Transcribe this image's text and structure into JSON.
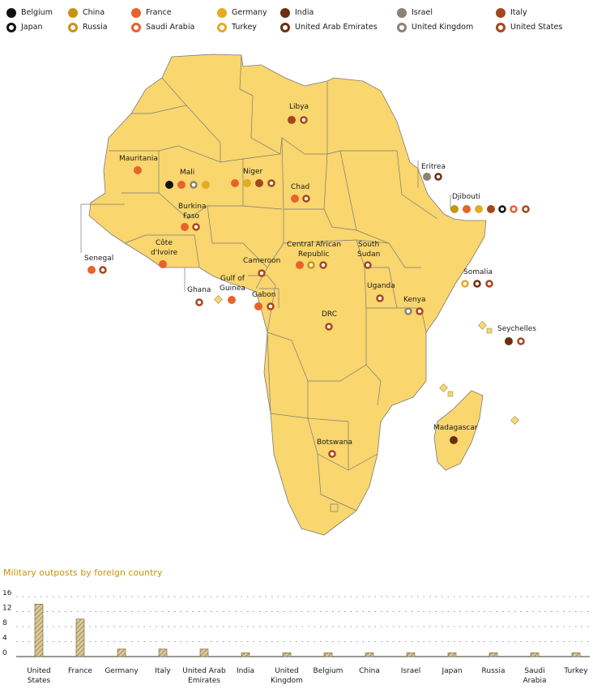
{
  "legend": [
    {
      "name": "Belgium",
      "style": "solid",
      "color": "#111111"
    },
    {
      "name": "China",
      "style": "solid",
      "color": "#c8930e"
    },
    {
      "name": "France",
      "style": "solid",
      "color": "#e8622a"
    },
    {
      "name": "Germany",
      "style": "solid",
      "color": "#e4ac23"
    },
    {
      "name": "India",
      "style": "solid",
      "color": "#6b2e10"
    },
    {
      "name": "Israel",
      "style": "solid",
      "color": "#8c8270"
    },
    {
      "name": "Italy",
      "style": "solid",
      "color": "#a5461d"
    },
    {
      "name": "Japan",
      "style": "ring",
      "color": "#111111"
    },
    {
      "name": "Russia",
      "style": "ring",
      "color": "#c8930e"
    },
    {
      "name": "Saudi Arabia",
      "style": "ring",
      "color": "#e8622a"
    },
    {
      "name": "Turkey",
      "style": "ring",
      "color": "#e4ac23"
    },
    {
      "name": "United Arab Emirates",
      "style": "ring",
      "color": "#6b2e10"
    },
    {
      "name": "United Kingdom",
      "style": "ring",
      "color": "#8c8270"
    },
    {
      "name": "United States",
      "style": "ring",
      "color": "#a5461d"
    }
  ],
  "map": {
    "labels": {
      "libya": "Libya",
      "mauritania": "Mauritania",
      "mali": "Mali",
      "niger": "Niger",
      "chad": "Chad",
      "eritrea": "Eritrea",
      "djibouti": "Djibouti",
      "burkina_1": "Burkina",
      "burkina_2": "Faso",
      "senegal": "Senegal",
      "cote_1": "Côte",
      "cote_2": "d'Ivoire",
      "car_1": "Central African",
      "car_2": "Republic",
      "ssudan_1": "South",
      "ssudan_2": "Sudan",
      "cameroon": "Cameroon",
      "somalia": "Somalia",
      "gog_1": "Gulf of",
      "gog_2": "Guinea",
      "ghana": "Ghana",
      "gabon": "Gabon",
      "uganda": "Uganda",
      "kenya": "Kenya",
      "drc": "DRC",
      "seychelles": "Seychelles",
      "madagascar": "Madagascar",
      "botswana": "Botswana"
    },
    "land_color": "#f9d66e",
    "border_color": "#7a7a7a"
  },
  "chart_title": "Military outposts by foreign country",
  "chart_data": {
    "type": "bar",
    "title": "Military outposts by foreign country",
    "categories": [
      "United States",
      "France",
      "Germany",
      "Italy",
      "United Arab Emirates",
      "India",
      "United Kingdom",
      "Belgium",
      "China",
      "Israel",
      "Japan",
      "Russia",
      "Saudi Arabia",
      "Turkey"
    ],
    "category_lines": [
      [
        "United",
        "States"
      ],
      [
        "France"
      ],
      [
        "Germany"
      ],
      [
        "Italy"
      ],
      [
        "United Arab",
        "Emirates"
      ],
      [
        "India"
      ],
      [
        "United",
        "Kingdom"
      ],
      [
        "Belgium"
      ],
      [
        "China"
      ],
      [
        "Israel"
      ],
      [
        "Japan"
      ],
      [
        "Russia"
      ],
      [
        "Saudi",
        "Arabia"
      ],
      [
        "Turkey"
      ]
    ],
    "values": [
      14,
      10,
      2,
      2,
      2,
      1,
      1,
      1,
      1,
      1,
      1,
      1,
      1,
      1
    ],
    "ylim": [
      0,
      16
    ],
    "yticks": [
      0,
      4,
      8,
      12,
      16
    ],
    "grid": true
  }
}
